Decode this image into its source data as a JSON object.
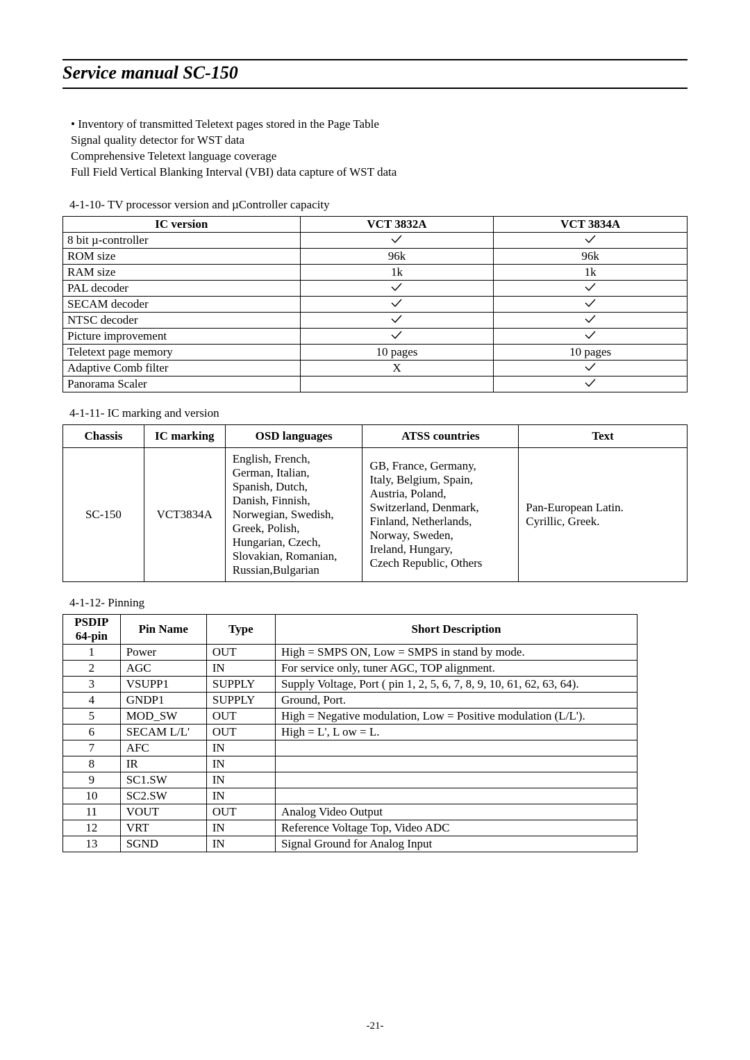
{
  "title": "Service manual SC-150",
  "intro_lines": [
    "• Inventory of transmitted Teletext pages stored in the Page Table",
    "  Signal quality detector for WST data",
    "  Comprehensive Teletext language coverage",
    "  Full Field Vertical Blanking Interval (VBI) data capture of WST data"
  ],
  "sec_4_1_10": "4-1-10- TV processor version and µController capacity",
  "table1": {
    "headers": [
      "IC version",
      "VCT 3832A",
      "VCT 3834A"
    ],
    "rows": [
      {
        "label": "8 bit µ-controller",
        "a": "check",
        "b": "check"
      },
      {
        "label": "ROM size",
        "a": "96k",
        "b": "96k"
      },
      {
        "label": "RAM size",
        "a": "1k",
        "b": "1k"
      },
      {
        "label": "PAL decoder",
        "a": "check",
        "b": "check"
      },
      {
        "label": "SECAM decoder",
        "a": "check",
        "b": "check"
      },
      {
        "label": "NTSC decoder",
        "a": "check",
        "b": "check"
      },
      {
        "label": "Picture improvement",
        "a": "check",
        "b": "check"
      },
      {
        "label": "Teletext page memory",
        "a": "10 pages",
        "b": "10 pages"
      },
      {
        "label": "Adaptive Comb filter",
        "a": "X",
        "b": "check"
      },
      {
        "label": "Panorama Scaler",
        "a": "",
        "b": "check"
      }
    ]
  },
  "sec_4_1_11": "4-1-11- IC marking and version",
  "table2": {
    "headers": [
      "Chassis",
      "IC marking",
      "OSD languages",
      "ATSS countries",
      "Text"
    ],
    "row": {
      "chassis": "SC-150",
      "ic": "VCT3834A",
      "osd": "English, French,\nGerman, Italian,\nSpanish, Dutch,\nDanish, Finnish,\nNorwegian, Swedish,\nGreek, Polish,\nHungarian, Czech,\nSlovakian, Romanian,\nRussian,Bulgarian",
      "atss": "GB, France, Germany,\nItaly, Belgium, Spain,\nAustria, Poland,\nSwitzerland, Denmark,\nFinland, Netherlands,\nNorway, Sweden,\nIreland, Hungary,\nCzech Republic, Others",
      "text": "Pan-European Latin.\nCyrillic, Greek."
    }
  },
  "sec_4_1_12": "4-1-12- Pinning",
  "table3": {
    "headers": [
      "PSDIP\n64-pin",
      "Pin Name",
      "Type",
      "Short  Description"
    ],
    "rows": [
      [
        "1",
        "Power",
        "OUT",
        "High = SMPS ON, Low = SMPS in stand by mode."
      ],
      [
        "2",
        "AGC",
        "IN",
        "For service only, tuner AGC, TOP alignment."
      ],
      [
        "3",
        "VSUPP1",
        "SUPPLY",
        "Supply Voltage, Port ( pin 1, 2, 5, 6, 7, 8, 9, 10, 61, 62, 63, 64)."
      ],
      [
        "4",
        "GNDP1",
        "SUPPLY",
        "Ground, Port."
      ],
      [
        "5",
        "MOD_SW",
        "OUT",
        "High = Negative modulation, Low = Positive modulation (L/L')."
      ],
      [
        "6",
        "SECAM L/L'",
        "OUT",
        "High = L', L ow = L."
      ],
      [
        "7",
        "AFC",
        "IN",
        ""
      ],
      [
        "8",
        "IR",
        "IN",
        ""
      ],
      [
        "9",
        "SC1.SW",
        "IN",
        ""
      ],
      [
        "10",
        "SC2.SW",
        "IN",
        ""
      ],
      [
        "11",
        "VOUT",
        "OUT",
        "Analog Video Output"
      ],
      [
        "12",
        "VRT",
        "IN",
        "Reference Voltage Top, Video ADC"
      ],
      [
        "13",
        "SGND",
        "IN",
        "Signal Ground for Analog Input"
      ]
    ]
  },
  "page_number": "-21-",
  "colors": {
    "text": "#000000",
    "bg": "#ffffff",
    "border": "#000000"
  }
}
